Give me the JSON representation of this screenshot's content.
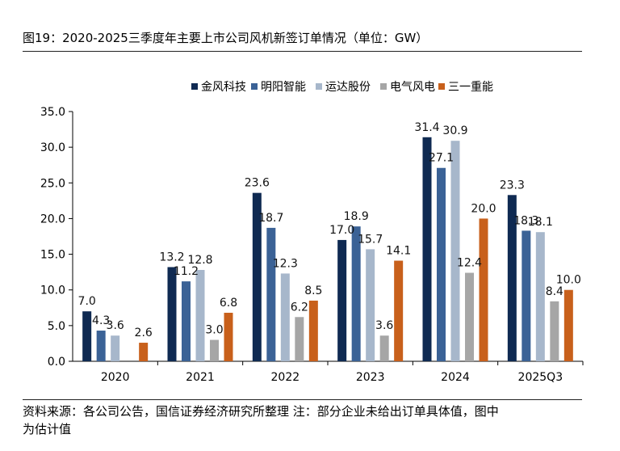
{
  "header": {
    "title": "图19：2020-2025三季度年主要上市公司风机新签订单情况（单位：GW）"
  },
  "footer": {
    "source_line1": "资料来源：各公司公告，国信证券经济研究所整理 注：部分企业未给出订单具体值，图中",
    "source_line2": "为估计值"
  },
  "chart_data": {
    "type": "bar",
    "title": "2020-2025三季度年主要上市公司风机新签订单情况（单位：GW）",
    "xlabel": "",
    "ylabel": "",
    "ylim": [
      0,
      35
    ],
    "yticks": [
      "0.0",
      "5.0",
      "10.0",
      "15.0",
      "20.0",
      "25.0",
      "30.0",
      "35.0"
    ],
    "legend_position": "top-center",
    "categories": [
      "2020",
      "2021",
      "2022",
      "2023",
      "2024",
      "2025Q3"
    ],
    "series": [
      {
        "name": "金风科技",
        "color": "#0f2a52",
        "values": [
          7.0,
          13.2,
          23.6,
          17.0,
          31.4,
          23.3
        ]
      },
      {
        "name": "明阳智能",
        "color": "#3b6296",
        "values": [
          4.3,
          11.2,
          18.7,
          18.9,
          27.1,
          18.3
        ]
      },
      {
        "name": "运达股份",
        "color": "#a7b7cb",
        "values": [
          3.6,
          12.8,
          12.3,
          15.7,
          30.9,
          18.1
        ]
      },
      {
        "name": "电气风电",
        "color": "#a6a6a6",
        "values": [
          null,
          3.0,
          6.2,
          3.6,
          12.4,
          8.4
        ]
      },
      {
        "name": "三一重能",
        "color": "#c8601b",
        "values": [
          2.6,
          6.8,
          8.5,
          14.1,
          20.0,
          10.0
        ]
      }
    ],
    "data_labels": [
      [
        "7.0",
        "13.2",
        "23.6",
        "17.0",
        "31.4",
        "23.3"
      ],
      [
        "4.3",
        "11.2",
        "18.7",
        "18.9",
        "27.1",
        "18.3"
      ],
      [
        "3.6",
        "12.8",
        "12.3",
        "15.7",
        "30.9",
        "18.1"
      ],
      [
        "",
        "3.0",
        "6.2",
        "3.6",
        "12.4",
        "8.4"
      ],
      [
        "2.6",
        "6.8",
        "8.5",
        "14.1",
        "20.0",
        "10.0"
      ]
    ]
  }
}
